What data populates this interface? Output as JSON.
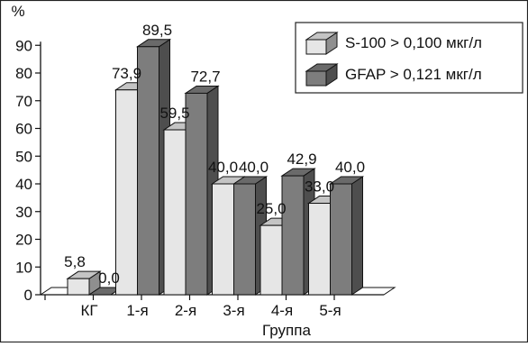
{
  "chart_data": {
    "type": "bar",
    "title": "",
    "xlabel": "Группа",
    "ylabel": "%",
    "ylim": [
      0,
      90
    ],
    "yticks": [
      0,
      10,
      20,
      30,
      40,
      50,
      60,
      70,
      80,
      90
    ],
    "grid": false,
    "legend_position": "top-right",
    "categories": [
      "КГ",
      "1-я",
      "2-я",
      "3-я",
      "4-я",
      "5-я"
    ],
    "series": [
      {
        "name": "S-100 > 0,100 мкг/л",
        "color": "#e6e6e6",
        "values": [
          5.8,
          73.9,
          59.5,
          40.0,
          25.0,
          33.0
        ],
        "labels": [
          "5,8",
          "73,9",
          "59,5",
          "40,0",
          "25,0",
          "33,0"
        ]
      },
      {
        "name": "GFAP > 0,121 мкг/л",
        "color": "#7d7d7d",
        "values": [
          0.0,
          89.5,
          72.7,
          40.0,
          42.9,
          40.0
        ],
        "labels": [
          "0,0",
          "89,5",
          "72,7",
          "40,0",
          "42,9",
          "40,0"
        ]
      }
    ]
  }
}
